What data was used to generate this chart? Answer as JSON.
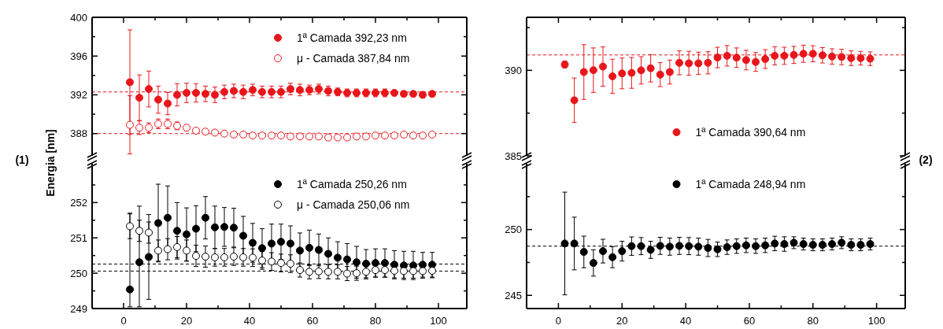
{
  "chart_data": [
    {
      "type": "scatter",
      "ylabel": "Energia [nm]",
      "annotations": [
        "(1)"
      ],
      "legend": "top right",
      "tick_labels": "y",
      "marker": "circle",
      "xlim": [
        -10,
        109
      ],
      "xticks": [
        {
          "value": 0,
          "label": null
        },
        {
          "value": 10,
          "label": null
        },
        {
          "value": 20,
          "label": null
        },
        {
          "value": 30,
          "label": null
        },
        {
          "value": 40,
          "label": null
        },
        {
          "value": 50,
          "label": null
        },
        {
          "value": 60,
          "label": null
        },
        {
          "value": 70,
          "label": null
        },
        {
          "value": 80,
          "label": null
        },
        {
          "value": 90,
          "label": null
        },
        {
          "value": 100,
          "label": null
        }
      ],
      "ylim": [
        385.7,
        400
      ],
      "yticks": [
        388,
        {
          "value": 390,
          "label": null
        },
        392,
        {
          "value": 394,
          "label": null
        },
        396,
        {
          "value": 398,
          "label": null
        },
        400
      ],
      "x": [
        2,
        5,
        8,
        11,
        14,
        17,
        20,
        23,
        26,
        29,
        32,
        35,
        38,
        41,
        44,
        47,
        50,
        53,
        56,
        59,
        62,
        65,
        68,
        71,
        74,
        77,
        80,
        83,
        86,
        89,
        92,
        95,
        98
      ],
      "series": [
        {
          "name": "1ª Camada 392,23 nm",
          "color": "#e8161b",
          "values": [
            393.3,
            391.7,
            392.6,
            391.5,
            391.1,
            392.0,
            392.2,
            392.2,
            392.1,
            392.0,
            392.3,
            392.4,
            392.3,
            392.5,
            392.3,
            392.3,
            392.3,
            392.6,
            392.5,
            392.5,
            392.6,
            392.4,
            392.3,
            392.2,
            392.2,
            392.2,
            392.2,
            392.2,
            392.2,
            392.1,
            392.1,
            392.0,
            392.1
          ],
          "errors": [
            5.4,
            2.35,
            1.85,
            1.4,
            1.15,
            1.15,
            1.0,
            0.95,
            0.8,
            0.8,
            0.7,
            0.7,
            0.7,
            0.6,
            0.6,
            0.6,
            0.6,
            0.6,
            0.6,
            0.5,
            0.5,
            0.5,
            0.4,
            0.4,
            0.4,
            0.4,
            0.4,
            0.4,
            0.3,
            0.3,
            0.3,
            0.3,
            0.3
          ]
        },
        {
          "name": "μ - Camada 387,84 nm",
          "color": "#e8161b",
          "marker": "circle-open",
          "values": [
            388.9,
            388.6,
            388.6,
            389.0,
            389.0,
            388.8,
            388.6,
            388.3,
            388.2,
            388.1,
            388.0,
            387.9,
            387.9,
            387.8,
            387.8,
            387.8,
            387.8,
            387.7,
            387.7,
            387.7,
            387.7,
            387.6,
            387.6,
            387.6,
            387.7,
            387.7,
            387.8,
            387.8,
            387.8,
            387.9,
            387.8,
            387.8,
            387.9
          ],
          "errors": [
            3.0,
            0.7,
            0.5,
            0.5,
            0.5,
            0.4,
            0.3,
            0.2,
            0.2,
            0.2,
            0.2,
            0.2,
            0.1,
            0.1,
            0.1,
            0.1,
            0.1,
            0.1,
            0.1,
            0.1,
            0.1,
            0.1,
            0.1,
            0.1,
            0.1,
            0.1,
            0.1,
            0.1,
            0.1,
            0.1,
            0.1,
            0.1,
            0.1
          ]
        }
      ],
      "ref_lines": [
        {
          "axis": "y",
          "value": 392.3,
          "color": "#e8161b",
          "line_style": "dashed"
        },
        {
          "axis": "y",
          "value": 388.0,
          "color": "#e8161b",
          "line_style": "dashed"
        }
      ]
    },
    {
      "type": "scatter",
      "legend": "top right",
      "marker": "circle",
      "xlim": [
        -10,
        109
      ],
      "xticks": [
        0,
        {
          "value": 10,
          "label": null
        },
        20,
        {
          "value": 30,
          "label": null
        },
        40,
        {
          "value": 50,
          "label": null
        },
        60,
        {
          "value": 70,
          "label": null
        },
        80,
        {
          "value": 90,
          "label": null
        },
        100
      ],
      "ylim": [
        249,
        253.1
      ],
      "yticks": [
        249,
        {
          "value": 249.5,
          "label": null
        },
        250,
        {
          "value": 250.5,
          "label": null
        },
        251,
        {
          "value": 251.5,
          "label": null
        },
        252,
        {
          "value": 252.5,
          "label": null
        }
      ],
      "x": [
        2,
        5,
        8,
        11,
        14,
        17,
        20,
        23,
        26,
        29,
        32,
        35,
        38,
        41,
        44,
        47,
        50,
        53,
        56,
        59,
        62,
        65,
        68,
        71,
        74,
        77,
        80,
        83,
        86,
        89,
        92,
        95,
        98
      ],
      "series": [
        {
          "name": "1ª Camada 250,26 nm",
          "color": "#000000",
          "values": [
            249.54,
            250.31,
            250.46,
            251.42,
            251.57,
            251.2,
            251.1,
            251.26,
            251.57,
            251.3,
            251.31,
            251.29,
            251.06,
            250.86,
            250.71,
            250.84,
            250.89,
            250.84,
            250.64,
            250.72,
            250.66,
            250.55,
            250.44,
            250.39,
            250.31,
            250.27,
            250.29,
            250.29,
            250.24,
            250.22,
            250.22,
            250.24,
            250.24
          ],
          "errors": [
            [
              249.05,
              251.7
            ],
            [
              249.05,
              251.9
            ],
            1.2,
            1.1,
            0.9,
            0.8,
            0.75,
            0.65,
            0.6,
            0.6,
            0.55,
            0.55,
            0.55,
            0.55,
            0.55,
            0.55,
            0.5,
            0.5,
            0.5,
            0.5,
            0.45,
            0.45,
            0.45,
            0.45,
            0.45,
            0.4,
            0.4,
            0.4,
            0.4,
            0.4,
            0.4,
            0.35,
            0.35
          ]
        },
        {
          "name": "μ - Camada 250,06 nm",
          "color": "#000000",
          "marker": "circle-open",
          "values": [
            251.33,
            251.2,
            251.15,
            250.64,
            250.68,
            250.74,
            250.64,
            250.49,
            250.47,
            250.45,
            250.45,
            250.47,
            250.45,
            250.44,
            250.36,
            250.33,
            250.29,
            250.27,
            250.09,
            250.04,
            250.05,
            250.04,
            250.04,
            249.99,
            250.0,
            250.04,
            250.09,
            250.09,
            250.07,
            250.06,
            250.06,
            250.06,
            250.07
          ],
          "errors": [
            0.35,
            0.3,
            0.3,
            0.3,
            0.3,
            0.3,
            0.3,
            0.3,
            0.3,
            0.25,
            0.25,
            0.25,
            0.25,
            0.25,
            0.25,
            0.25,
            0.25,
            0.25,
            0.2,
            0.2,
            0.2,
            0.2,
            0.2,
            0.2,
            0.2,
            0.2,
            0.2,
            0.2,
            0.2,
            0.2,
            0.2,
            0.2,
            0.2
          ]
        }
      ],
      "ref_lines": [
        {
          "axis": "y",
          "value": 250.26,
          "color": "#000000",
          "line_style": "dashed"
        },
        {
          "axis": "y",
          "value": 250.06,
          "color": "#000000",
          "line_style": "dashed"
        }
      ]
    },
    {
      "type": "scatter",
      "annotations": [
        "(2)"
      ],
      "legend": "bottom",
      "tick_labels": "y",
      "marker": "circle",
      "xlim": [
        -10,
        109
      ],
      "xticks": [
        {
          "value": 0,
          "label": null
        },
        {
          "value": 10,
          "label": null
        },
        {
          "value": 20,
          "label": null
        },
        {
          "value": 30,
          "label": null
        },
        {
          "value": 40,
          "label": null
        },
        {
          "value": 50,
          "label": null
        },
        {
          "value": 60,
          "label": null
        },
        {
          "value": 70,
          "label": null
        },
        {
          "value": 80,
          "label": null
        },
        {
          "value": 90,
          "label": null
        },
        {
          "value": 100,
          "label": null
        }
      ],
      "ylim": [
        385,
        393.1
      ],
      "yticks": [
        385,
        {
          "value": 387.5,
          "label": null
        },
        390,
        {
          "value": 392.5,
          "label": null
        }
      ],
      "x": [
        2,
        5,
        8,
        11,
        14,
        17,
        20,
        23,
        26,
        29,
        32,
        35,
        38,
        41,
        44,
        47,
        50,
        53,
        56,
        59,
        62,
        65,
        68,
        71,
        74,
        77,
        80,
        83,
        86,
        89,
        92,
        95,
        98
      ],
      "series": [
        {
          "name": "1ª Camada 390,64 nm",
          "color": "#e8161b",
          "values": [
            390.34,
            388.25,
            389.9,
            390.01,
            390.22,
            389.65,
            389.82,
            389.85,
            390.0,
            390.12,
            389.75,
            389.9,
            390.44,
            390.41,
            390.41,
            390.44,
            390.75,
            390.85,
            390.74,
            390.6,
            390.49,
            390.66,
            390.85,
            390.85,
            390.9,
            390.97,
            390.97,
            390.88,
            390.81,
            390.78,
            390.71,
            390.71,
            390.68
          ],
          "errors": [
            0.2,
            1.3,
            1.6,
            1.3,
            1.15,
            1.0,
            0.9,
            0.9,
            0.8,
            0.8,
            0.7,
            0.7,
            0.7,
            0.7,
            0.65,
            0.65,
            0.6,
            0.6,
            0.57,
            0.57,
            0.55,
            0.55,
            0.53,
            0.5,
            0.5,
            0.5,
            0.47,
            0.45,
            0.45,
            0.45,
            0.43,
            0.4,
            0.4
          ]
        }
      ],
      "ref_lines": [
        {
          "axis": "y",
          "value": 390.9,
          "color": "#e8161b",
          "line_style": "dashed"
        }
      ]
    },
    {
      "type": "scatter",
      "legend": "top",
      "marker": "circle",
      "xlim": [
        -10,
        109
      ],
      "xticks": [
        0,
        {
          "value": 10,
          "label": null
        },
        20,
        {
          "value": 30,
          "label": null
        },
        40,
        {
          "value": 50,
          "label": null
        },
        60,
        {
          "value": 70,
          "label": null
        },
        80,
        {
          "value": 90,
          "label": null
        },
        100
      ],
      "ylim": [
        244,
        255
      ],
      "yticks": [
        245,
        {
          "value": 247.5,
          "label": null
        },
        250,
        {
          "value": 252.5,
          "label": null
        }
      ],
      "x": [
        2,
        5,
        8,
        11,
        14,
        17,
        20,
        23,
        26,
        29,
        32,
        35,
        38,
        41,
        44,
        47,
        50,
        53,
        56,
        59,
        62,
        65,
        68,
        71,
        74,
        77,
        80,
        83,
        86,
        89,
        92,
        95,
        98
      ],
      "series": [
        {
          "name": "1ª Camada 248,94 nm",
          "color": "#000000",
          "values": [
            248.94,
            248.94,
            248.3,
            247.46,
            248.36,
            247.9,
            248.36,
            248.74,
            248.74,
            248.46,
            248.76,
            248.7,
            248.76,
            248.74,
            248.7,
            248.6,
            248.5,
            248.66,
            248.74,
            248.8,
            248.74,
            248.8,
            248.94,
            248.9,
            249.0,
            248.9,
            248.84,
            248.84,
            248.9,
            249.0,
            248.84,
            248.84,
            248.9
          ],
          "errors": [
            3.9,
            2.0,
            1.2,
            1.0,
            0.9,
            0.8,
            0.75,
            0.7,
            0.65,
            0.65,
            0.65,
            0.65,
            0.65,
            0.65,
            0.65,
            0.65,
            0.55,
            0.55,
            0.55,
            0.55,
            0.55,
            0.55,
            0.55,
            0.55,
            0.45,
            0.45,
            0.45,
            0.45,
            0.45,
            0.45,
            0.45,
            0.45,
            0.45
          ]
        }
      ],
      "ref_lines": [
        {
          "axis": "y",
          "value": 248.74,
          "color": "#000000",
          "line_style": "dashed"
        }
      ]
    }
  ]
}
